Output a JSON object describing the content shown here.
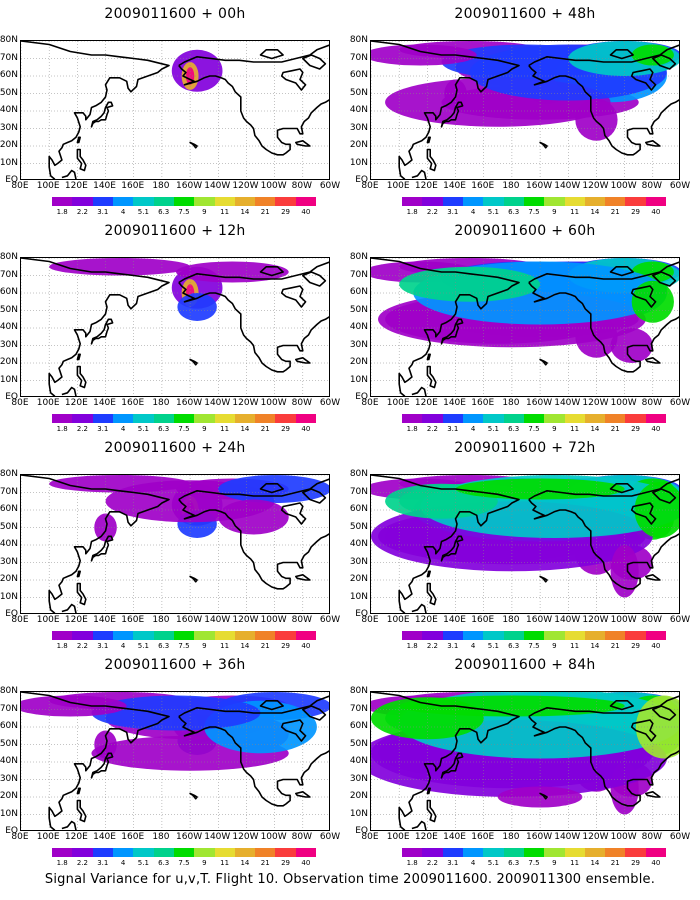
{
  "caption": "Signal Variance for u,v,T. Flight 10. Observation time 2009011600. 2009011300 ensemble.",
  "panels": [
    {
      "title": "2009011600 + 00h",
      "intensity": 0
    },
    {
      "title": "2009011600 + 48h",
      "intensity": 4
    },
    {
      "title": "2009011600 + 12h",
      "intensity": 1
    },
    {
      "title": "2009011600 + 60h",
      "intensity": 5
    },
    {
      "title": "2009011600 + 24h",
      "intensity": 2
    },
    {
      "title": "2009011600 + 72h",
      "intensity": 6
    },
    {
      "title": "2009011600 + 36h",
      "intensity": 3
    },
    {
      "title": "2009011600 + 84h",
      "intensity": 7
    }
  ],
  "lat_labels": [
    "80N",
    "70N",
    "60N",
    "50N",
    "40N",
    "30N",
    "20N",
    "10N",
    "EQ"
  ],
  "lon_labels": [
    "80E",
    "100E",
    "120E",
    "140E",
    "160E",
    "180",
    "160W",
    "140W",
    "120W",
    "100W",
    "80W",
    "60W"
  ],
  "colorbar": {
    "labels": [
      "1.8",
      "2.2",
      "3.1",
      "4",
      "5.1",
      "6.3",
      "7.5",
      "9",
      "11",
      "14",
      "21",
      "29",
      "40"
    ],
    "colors": [
      "#a000c8",
      "#8200dc",
      "#1e3cff",
      "#0096ff",
      "#00c8c8",
      "#00d28c",
      "#00dc00",
      "#a0e632",
      "#e6dc32",
      "#e6af2d",
      "#f08228",
      "#fa3c3c",
      "#f00082"
    ]
  }
}
